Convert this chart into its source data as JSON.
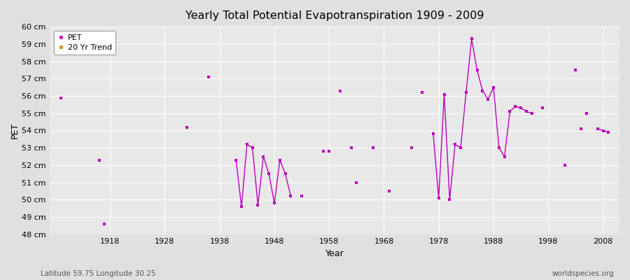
{
  "title": "Yearly Total Potential Evapotranspiration 1909 - 2009",
  "xlabel": "Year",
  "ylabel": "PET",
  "subtitle_left": "Latitude 59.75 Longitude 30.25",
  "subtitle_right": "worldspecies.org",
  "ylim_min": 48,
  "ylim_max": 60,
  "line_color": "#bb00bb",
  "marker_color": "#bb00bb",
  "fig_bg": "#e0e0e0",
  "plot_bg": "#e8e8e8",
  "legend_entries": [
    "PET",
    "20 Yr Trend"
  ],
  "legend_colors": [
    "#bb00bb",
    "#dd8800"
  ],
  "xticks": [
    1918,
    1928,
    1938,
    1948,
    1958,
    1968,
    1978,
    1988,
    1998,
    2008
  ],
  "xlim": [
    1907,
    2011
  ],
  "years": [
    1909,
    1916,
    1917,
    1932,
    1936,
    1941,
    1942,
    1943,
    1944,
    1945,
    1946,
    1947,
    1948,
    1949,
    1950,
    1951,
    1953,
    1957,
    1958,
    1960,
    1962,
    1963,
    1966,
    1969,
    1973,
    1975,
    1977,
    1978,
    1979,
    1980,
    1981,
    1982,
    1983,
    1984,
    1985,
    1986,
    1987,
    1988,
    1989,
    1990,
    1991,
    1992,
    1993,
    1994,
    1995,
    1997,
    2001,
    2003,
    2004,
    2005,
    2007,
    2008,
    2009
  ],
  "pet": [
    55.9,
    52.3,
    48.6,
    54.2,
    57.1,
    52.3,
    49.6,
    53.2,
    53.0,
    49.7,
    52.5,
    51.5,
    49.8,
    52.3,
    51.5,
    50.2,
    50.2,
    52.8,
    52.8,
    56.3,
    53.0,
    51.0,
    53.0,
    50.5,
    53.0,
    56.2,
    53.8,
    50.1,
    56.1,
    50.0,
    53.2,
    53.0,
    56.2,
    59.3,
    57.5,
    56.3,
    55.8,
    56.5,
    53.0,
    52.5,
    55.1,
    55.4,
    55.3,
    55.1,
    55.0,
    55.3,
    52.0,
    57.5,
    54.1,
    55.0,
    54.1,
    54.0,
    53.9
  ],
  "connected_segments": [
    [
      1941,
      1942,
      1943,
      1944,
      1945,
      1946,
      1947,
      1948,
      1949,
      1950,
      1951
    ],
    [
      1977,
      1978,
      1979,
      1980,
      1981,
      1982,
      1983,
      1984,
      1985,
      1986,
      1987,
      1988,
      1989,
      1990,
      1991,
      1992,
      1993,
      1994,
      1995
    ],
    [
      2007,
      2008,
      2009
    ]
  ]
}
